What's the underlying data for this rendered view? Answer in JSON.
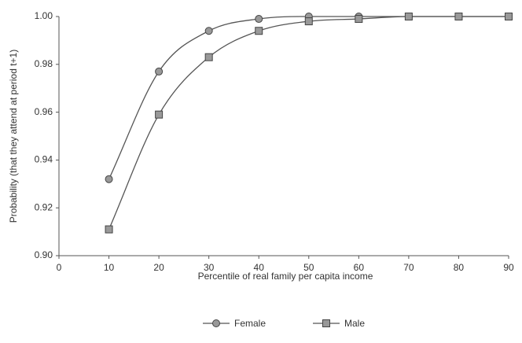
{
  "chart_data": {
    "type": "line",
    "x_label": "Percentile of real family per capita income",
    "y_label": "Probability (that they attend at period t+1)",
    "x": [
      10,
      20,
      30,
      40,
      50,
      60,
      70,
      80,
      90
    ],
    "series": [
      {
        "name": "Female",
        "color": "#555555",
        "marker": "circle",
        "values": [
          0.932,
          0.977,
          0.994,
          0.999,
          1.0,
          1.0,
          1.0,
          1.0,
          1.0
        ]
      },
      {
        "name": "Male",
        "color": "#555555",
        "marker": "square",
        "values": [
          0.911,
          0.959,
          0.983,
          0.994,
          0.998,
          0.999,
          1.0,
          1.0,
          1.0
        ]
      }
    ],
    "xlim": [
      0,
      90
    ],
    "xticks": [
      0,
      10,
      20,
      30,
      40,
      50,
      60,
      70,
      80,
      90
    ],
    "ylim": [
      0.9,
      1.0
    ],
    "yticks": [
      {
        "value": 0.9,
        "label": "0.90"
      },
      0.92,
      0.94,
      0.96,
      0.98,
      {
        "value": 1.0,
        "label": "1.00"
      }
    ],
    "grid": false,
    "legend": "bottom"
  }
}
